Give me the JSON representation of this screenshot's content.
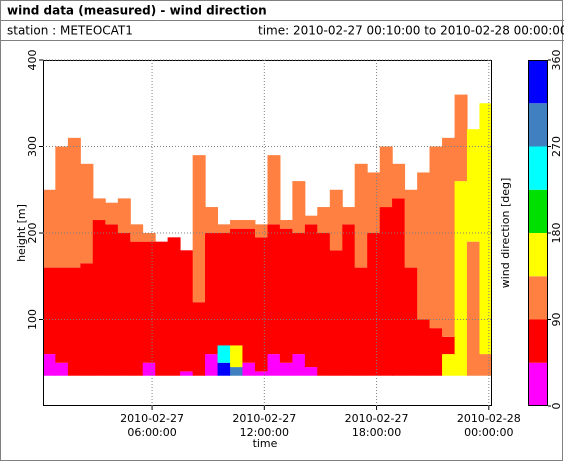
{
  "chart_data": {
    "type": "profile",
    "title": "wind data (measured) - wind direction",
    "station": "station : METEOCAT1",
    "time_range": "time: 2010-02-27 00:10:00 to 2010-02-28 00:00:00",
    "x_label": "time",
    "y_label": "height [m]",
    "colorbar_label": "wind direction [deg]",
    "xlim": [
      0.17,
      24.17
    ],
    "xticks": [
      {
        "value": 6,
        "label": "06:00:00",
        "date": "2010-02-27"
      },
      {
        "value": 12,
        "label": "12:00:00",
        "date": "2010-02-27"
      },
      {
        "value": 18,
        "label": "18:00:00",
        "date": "2010-02-27"
      },
      {
        "value": 24,
        "label": "00:00:00",
        "date": "2010-02-28"
      }
    ],
    "ylim": [
      0,
      400
    ],
    "yticks": [
      100,
      200,
      300,
      400
    ],
    "grid": true,
    "base": 35,
    "column_width": 0.667,
    "colorbar": {
      "lim": [
        0,
        360
      ],
      "ticks": [
        0,
        90,
        180,
        270,
        360
      ],
      "bounds": [
        0,
        45,
        90,
        135,
        180,
        225,
        270,
        315,
        360
      ],
      "colors": [
        "#ff00ff",
        "#ff0000",
        "#ff8040",
        "#ffff00",
        "#00e000",
        "#00ffff",
        "#4080c0",
        "#0000ff"
      ]
    },
    "columns": [
      {
        "t": 0.17,
        "segments": [
          [
            60,
            20
          ],
          [
            160,
            70
          ],
          [
            250,
            110
          ]
        ]
      },
      {
        "t": 0.83,
        "segments": [
          [
            50,
            20
          ],
          [
            160,
            70
          ],
          [
            300,
            110
          ]
        ]
      },
      {
        "t": 1.5,
        "segments": [
          [
            160,
            70
          ],
          [
            310,
            110
          ]
        ]
      },
      {
        "t": 2.17,
        "segments": [
          [
            165,
            70
          ],
          [
            280,
            110
          ]
        ]
      },
      {
        "t": 2.83,
        "segments": [
          [
            215,
            70
          ],
          [
            240,
            110
          ]
        ]
      },
      {
        "t": 3.5,
        "segments": [
          [
            210,
            70
          ],
          [
            235,
            110
          ]
        ]
      },
      {
        "t": 4.17,
        "segments": [
          [
            200,
            70
          ],
          [
            240,
            110
          ]
        ]
      },
      {
        "t": 4.83,
        "segments": [
          [
            190,
            70
          ],
          [
            210,
            110
          ]
        ]
      },
      {
        "t": 5.5,
        "segments": [
          [
            50,
            20
          ],
          [
            190,
            70
          ],
          [
            200,
            110
          ]
        ]
      },
      {
        "t": 6.17,
        "segments": [
          [
            190,
            70
          ]
        ]
      },
      {
        "t": 6.83,
        "segments": [
          [
            195,
            70
          ]
        ]
      },
      {
        "t": 7.5,
        "segments": [
          [
            40,
            20
          ],
          [
            180,
            70
          ]
        ]
      },
      {
        "t": 8.17,
        "segments": [
          [
            120,
            70
          ],
          [
            290,
            110
          ]
        ]
      },
      {
        "t": 8.83,
        "segments": [
          [
            60,
            20
          ],
          [
            200,
            70
          ],
          [
            230,
            110
          ]
        ]
      },
      {
        "t": 9.5,
        "segments": [
          [
            50,
            330
          ],
          [
            70,
            250
          ],
          [
            200,
            70
          ],
          [
            210,
            110
          ]
        ]
      },
      {
        "t": 10.17,
        "segments": [
          [
            45,
            290
          ],
          [
            70,
            160
          ],
          [
            205,
            70
          ],
          [
            215,
            110
          ]
        ]
      },
      {
        "t": 10.83,
        "segments": [
          [
            50,
            20
          ],
          [
            205,
            70
          ],
          [
            215,
            110
          ]
        ]
      },
      {
        "t": 11.5,
        "segments": [
          [
            40,
            20
          ],
          [
            195,
            70
          ],
          [
            210,
            110
          ]
        ]
      },
      {
        "t": 12.17,
        "segments": [
          [
            60,
            20
          ],
          [
            210,
            70
          ],
          [
            290,
            110
          ]
        ]
      },
      {
        "t": 12.83,
        "segments": [
          [
            50,
            20
          ],
          [
            205,
            70
          ],
          [
            215,
            110
          ]
        ]
      },
      {
        "t": 13.5,
        "segments": [
          [
            60,
            20
          ],
          [
            200,
            70
          ],
          [
            260,
            110
          ]
        ]
      },
      {
        "t": 14.17,
        "segments": [
          [
            45,
            20
          ],
          [
            210,
            70
          ],
          [
            220,
            110
          ]
        ]
      },
      {
        "t": 14.83,
        "segments": [
          [
            200,
            70
          ],
          [
            230,
            110
          ]
        ]
      },
      {
        "t": 15.5,
        "segments": [
          [
            180,
            70
          ],
          [
            250,
            110
          ]
        ]
      },
      {
        "t": 16.17,
        "segments": [
          [
            210,
            70
          ],
          [
            230,
            110
          ]
        ]
      },
      {
        "t": 16.83,
        "segments": [
          [
            160,
            70
          ],
          [
            280,
            110
          ]
        ]
      },
      {
        "t": 17.5,
        "segments": [
          [
            200,
            70
          ],
          [
            270,
            110
          ]
        ]
      },
      {
        "t": 18.17,
        "segments": [
          [
            230,
            70
          ],
          [
            300,
            110
          ]
        ]
      },
      {
        "t": 18.83,
        "segments": [
          [
            240,
            70
          ],
          [
            280,
            110
          ]
        ]
      },
      {
        "t": 19.5,
        "segments": [
          [
            160,
            70
          ],
          [
            250,
            110
          ]
        ]
      },
      {
        "t": 20.17,
        "segments": [
          [
            100,
            70
          ],
          [
            270,
            110
          ]
        ]
      },
      {
        "t": 20.83,
        "segments": [
          [
            90,
            70
          ],
          [
            300,
            110
          ]
        ]
      },
      {
        "t": 21.5,
        "segments": [
          [
            60,
            160
          ],
          [
            80,
            70
          ],
          [
            310,
            110
          ]
        ]
      },
      {
        "t": 22.17,
        "segments": [
          [
            260,
            160
          ],
          [
            360,
            110
          ]
        ]
      },
      {
        "t": 22.83,
        "segments": [
          [
            190,
            110
          ],
          [
            320,
            160
          ]
        ]
      },
      {
        "t": 23.5,
        "segments": [
          [
            60,
            110
          ],
          [
            350,
            160
          ]
        ]
      }
    ]
  }
}
